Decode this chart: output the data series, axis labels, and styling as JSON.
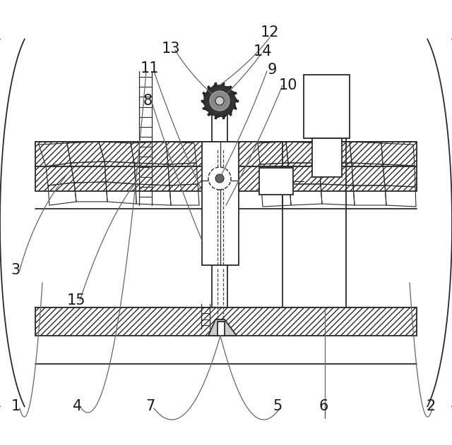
{
  "bg_color": "#ffffff",
  "line_color": "#2a2a2a",
  "label_color": "#1a1a1a",
  "figsize": [
    6.4,
    6.31
  ],
  "dpi": 100,
  "lw_main": 1.3,
  "lw_thin": 0.9,
  "lw_rock": 0.8
}
